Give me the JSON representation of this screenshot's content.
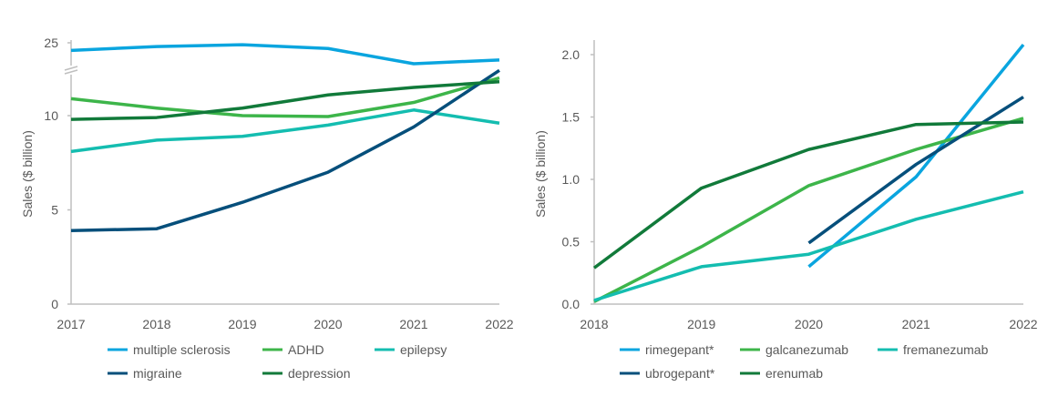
{
  "colors": {
    "light_blue": "#0AA5DF",
    "light_green": "#3DB54A",
    "teal": "#14BDB0",
    "dark_navy": "#064F7B",
    "dark_green": "#117A3A",
    "axis": "#BFBFBF",
    "text": "#595959"
  },
  "chart_data": [
    {
      "type": "line",
      "title": "",
      "xlabel": "",
      "ylabel": "Sales ($ billion)",
      "x": [
        "2017",
        "2018",
        "2019",
        "2020",
        "2021",
        "2022"
      ],
      "yticks": [
        "0",
        "5",
        "10",
        "25"
      ],
      "axis_break": "between 10 and 25 on the y-axis",
      "legend_position": "bottom",
      "grid": false,
      "series": [
        {
          "name": "multiple sclerosis",
          "color": "#0AA5DF",
          "values": [
            24.6,
            24.8,
            24.9,
            24.7,
            23.9,
            24.1
          ]
        },
        {
          "name": "ADHD",
          "color": "#3DB54A",
          "values": [
            10.9,
            10.4,
            10.0,
            9.95,
            10.7,
            12.0
          ]
        },
        {
          "name": "epilepsy",
          "color": "#14BDB0",
          "values": [
            8.1,
            8.7,
            8.9,
            9.5,
            10.3,
            9.6
          ]
        },
        {
          "name": "migraine",
          "color": "#064F7B",
          "values": [
            3.9,
            4.0,
            5.4,
            7.0,
            9.4,
            12.4
          ]
        },
        {
          "name": "depression",
          "color": "#117A3A",
          "values": [
            9.8,
            9.9,
            10.4,
            11.1,
            11.5,
            11.8
          ]
        }
      ]
    },
    {
      "type": "line",
      "title": "",
      "xlabel": "",
      "ylabel": "Sales ($ billion)",
      "x": [
        "2018",
        "2019",
        "2020",
        "2021",
        "2022"
      ],
      "yticks": [
        "0.0",
        "0.5",
        "1.0",
        "1.5",
        "2.0"
      ],
      "ylim": [
        0,
        2.1
      ],
      "legend_position": "bottom",
      "grid": false,
      "series": [
        {
          "name": "rimegepant*",
          "color": "#0AA5DF",
          "values": [
            null,
            null,
            0.3,
            1.02,
            2.08
          ]
        },
        {
          "name": "galcanezumab",
          "color": "#3DB54A",
          "values": [
            0.02,
            0.46,
            0.95,
            1.24,
            1.49
          ]
        },
        {
          "name": "fremanezumab",
          "color": "#14BDB0",
          "values": [
            0.03,
            0.3,
            0.4,
            0.68,
            0.9
          ]
        },
        {
          "name": "ubrogepant*",
          "color": "#064F7B",
          "values": [
            null,
            null,
            0.49,
            1.12,
            1.66
          ]
        },
        {
          "name": "erenumab",
          "color": "#117A3A",
          "values": [
            0.29,
            0.93,
            1.24,
            1.44,
            1.46
          ]
        }
      ]
    }
  ]
}
